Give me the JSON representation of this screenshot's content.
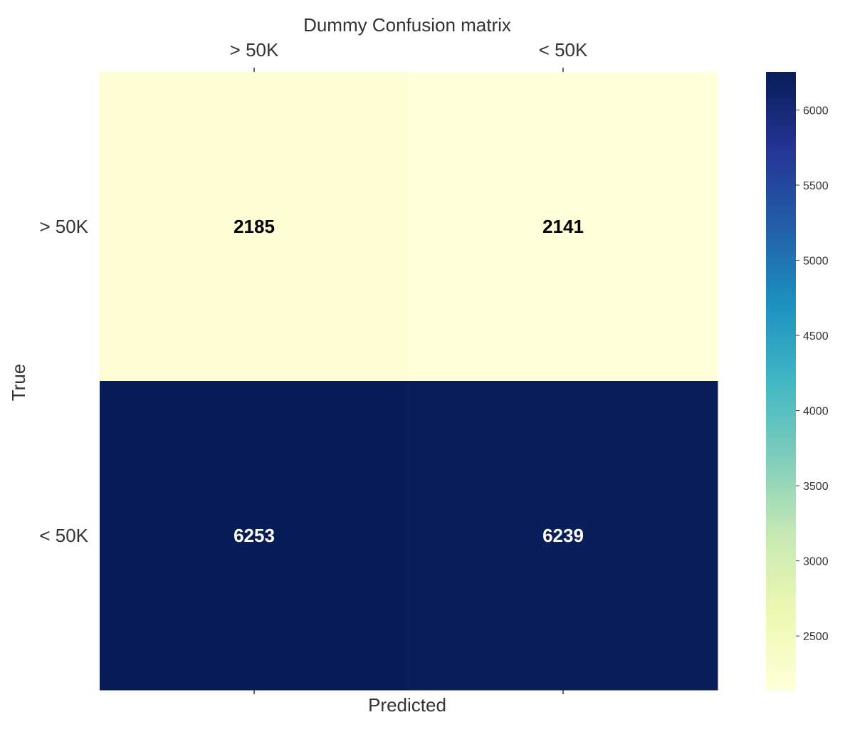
{
  "chart_data": {
    "type": "heatmap",
    "title": "Dummy Confusion matrix",
    "xlabel": "Predicted",
    "ylabel": "True",
    "x_categories": [
      "> 50K",
      "< 50K"
    ],
    "y_categories": [
      "> 50K",
      "< 50K"
    ],
    "matrix": [
      [
        2185,
        2141
      ],
      [
        6253,
        6239
      ]
    ],
    "colormap": "YlGnBu",
    "colorbar": {
      "min": 2141,
      "max": 6253,
      "ticks": [
        2500,
        3000,
        3500,
        4000,
        4500,
        5000,
        5500,
        6000
      ]
    }
  }
}
